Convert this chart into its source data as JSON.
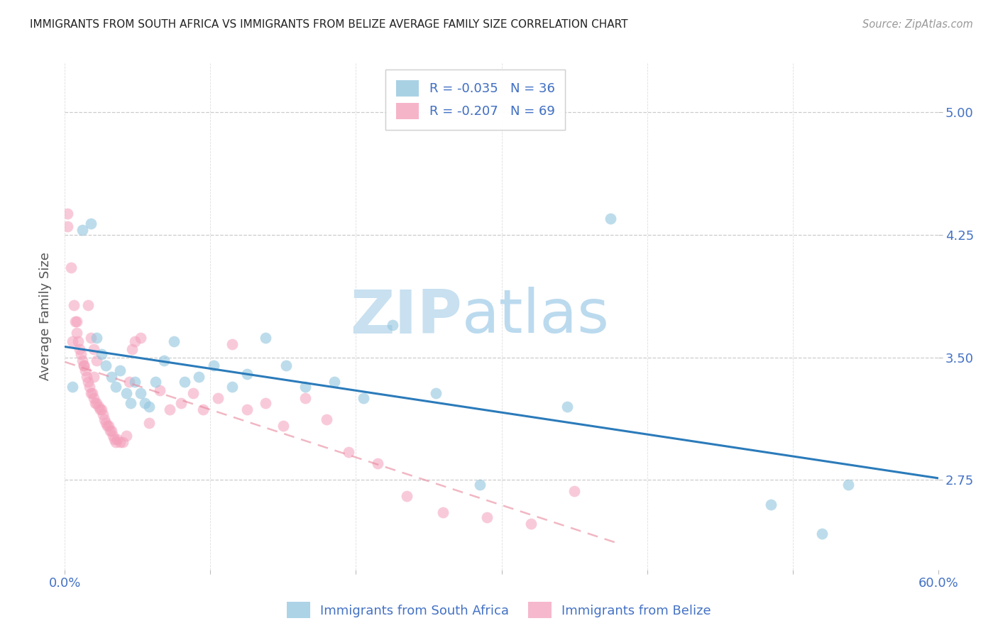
{
  "title": "IMMIGRANTS FROM SOUTH AFRICA VS IMMIGRANTS FROM BELIZE AVERAGE FAMILY SIZE CORRELATION CHART",
  "source": "Source: ZipAtlas.com",
  "ylabel": "Average Family Size",
  "legend_blue_R": "R = -0.035",
  "legend_blue_N": "N = 36",
  "legend_pink_R": "R = -0.207",
  "legend_pink_N": "N = 69",
  "legend_bottom_blue": "Immigrants from South Africa",
  "legend_bottom_pink": "Immigrants from Belize",
  "yticks": [
    2.75,
    3.5,
    4.25,
    5.0
  ],
  "ylim": [
    2.2,
    5.3
  ],
  "xlim": [
    0.0,
    0.6
  ],
  "blue_color": "#92c5de",
  "pink_color": "#f4a0bb",
  "blue_line_color": "#2b7bba",
  "pink_line_color": "#e8879c",
  "axis_color": "#4472c4",
  "title_color": "#222222",
  "source_color": "#999999",
  "watermark_zip_color": "#c8e0f0",
  "watermark_atlas_color": "#b0d4ec",
  "blue_scatter_x": [
    0.005,
    0.012,
    0.018,
    0.022,
    0.025,
    0.028,
    0.032,
    0.035,
    0.038,
    0.042,
    0.045,
    0.048,
    0.052,
    0.055,
    0.058,
    0.062,
    0.068,
    0.075,
    0.082,
    0.092,
    0.102,
    0.115,
    0.125,
    0.138,
    0.152,
    0.165,
    0.185,
    0.205,
    0.225,
    0.255,
    0.285,
    0.345,
    0.375,
    0.485,
    0.52,
    0.538
  ],
  "blue_scatter_y": [
    3.32,
    4.28,
    4.32,
    3.62,
    3.52,
    3.45,
    3.38,
    3.32,
    3.42,
    3.28,
    3.22,
    3.35,
    3.28,
    3.22,
    3.2,
    3.35,
    3.48,
    3.6,
    3.35,
    3.38,
    3.45,
    3.32,
    3.4,
    3.62,
    3.45,
    3.32,
    3.35,
    3.25,
    3.7,
    3.28,
    2.72,
    3.2,
    4.35,
    2.6,
    2.42,
    2.72
  ],
  "pink_scatter_x": [
    0.002,
    0.004,
    0.006,
    0.007,
    0.008,
    0.009,
    0.01,
    0.011,
    0.012,
    0.013,
    0.014,
    0.015,
    0.016,
    0.016,
    0.017,
    0.018,
    0.018,
    0.019,
    0.02,
    0.02,
    0.021,
    0.022,
    0.022,
    0.023,
    0.024,
    0.025,
    0.026,
    0.027,
    0.028,
    0.029,
    0.03,
    0.031,
    0.032,
    0.033,
    0.034,
    0.035,
    0.036,
    0.038,
    0.04,
    0.042,
    0.044,
    0.046,
    0.048,
    0.052,
    0.058,
    0.065,
    0.072,
    0.08,
    0.088,
    0.095,
    0.105,
    0.115,
    0.125,
    0.138,
    0.15,
    0.165,
    0.18,
    0.195,
    0.215,
    0.235,
    0.26,
    0.29,
    0.32,
    0.35,
    0.002,
    0.005,
    0.008,
    0.013,
    0.02
  ],
  "pink_scatter_y": [
    4.38,
    4.05,
    3.82,
    3.72,
    3.65,
    3.6,
    3.55,
    3.52,
    3.48,
    3.45,
    3.42,
    3.38,
    3.35,
    3.82,
    3.32,
    3.28,
    3.62,
    3.28,
    3.25,
    3.55,
    3.22,
    3.22,
    3.48,
    3.2,
    3.18,
    3.18,
    3.15,
    3.12,
    3.1,
    3.08,
    3.08,
    3.05,
    3.05,
    3.02,
    3.0,
    2.98,
    3.0,
    2.98,
    2.98,
    3.02,
    3.35,
    3.55,
    3.6,
    3.62,
    3.1,
    3.3,
    3.18,
    3.22,
    3.28,
    3.18,
    3.25,
    3.58,
    3.18,
    3.22,
    3.08,
    3.25,
    3.12,
    2.92,
    2.85,
    2.65,
    2.55,
    2.52,
    2.48,
    2.68,
    4.3,
    3.6,
    3.72,
    3.45,
    3.38
  ]
}
